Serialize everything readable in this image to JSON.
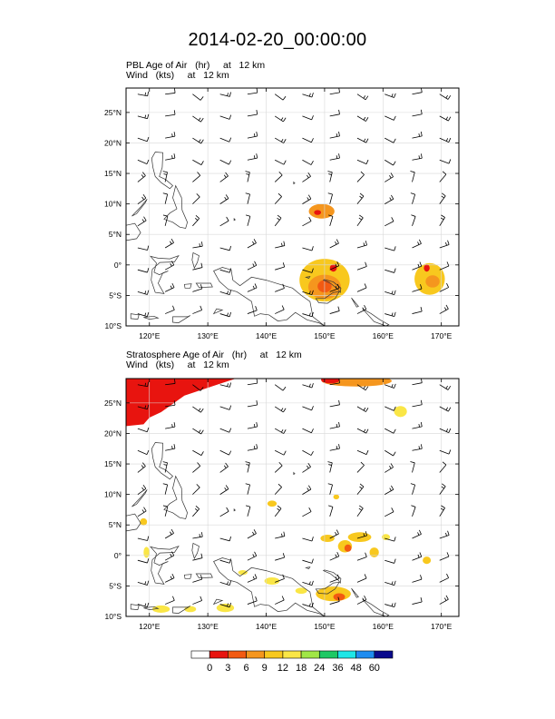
{
  "title": "2014-02-20_00:00:00",
  "colorbar": {
    "labels": [
      "0",
      "3",
      "6",
      "9",
      "12",
      "18",
      "24",
      "36",
      "48",
      "60"
    ],
    "colors": [
      "#ffffff",
      "#e8140f",
      "#f25a12",
      "#f5961e",
      "#f8c81e",
      "#fae646",
      "#a0e646",
      "#1ec864",
      "#1ee6e6",
      "#1e8cf0",
      "#0a0a8c"
    ]
  },
  "chart_data": [
    {
      "type": "heatmap",
      "name": "PBL",
      "title": "PBL Age of Air   (hr)     at   12 km",
      "subtitle": "Wind   (kts)     at   12 km",
      "xlim": [
        116,
        173
      ],
      "ylim": [
        -10,
        29
      ],
      "xticks": [
        120,
        130,
        140,
        150,
        160,
        170
      ],
      "xtick_labels": [
        "120°E",
        "130°E",
        "140°E",
        "150°E",
        "160°E",
        "170°E"
      ],
      "yticks": [
        -10,
        -5,
        0,
        5,
        10,
        15,
        20,
        25
      ],
      "ytick_labels": [
        "10°S",
        "5°S",
        "0°",
        "5°N",
        "10°N",
        "15°N",
        "20°N",
        "25°N"
      ],
      "grid": true,
      "patches": [
        {
          "lon": 149.5,
          "lat": 8.8,
          "rx": 2.2,
          "ry": 1.2,
          "level": 3
        },
        {
          "lon": 148.8,
          "lat": 8.6,
          "rx": 0.6,
          "ry": 0.4,
          "level": 1
        },
        {
          "lon": 150.0,
          "lat": -2.5,
          "rx": 4.3,
          "ry": 3.5,
          "level": 4
        },
        {
          "lon": 150.0,
          "lat": -3.6,
          "rx": 2.8,
          "ry": 2.0,
          "level": 3
        },
        {
          "lon": 151.5,
          "lat": -0.5,
          "rx": 0.6,
          "ry": 0.6,
          "level": 1
        },
        {
          "lon": 150.0,
          "lat": -3.5,
          "rx": 1.2,
          "ry": 1.0,
          "level": 2
        },
        {
          "lon": 168.0,
          "lat": -2.3,
          "rx": 2.6,
          "ry": 2.6,
          "level": 4
        },
        {
          "lon": 168.5,
          "lat": -2.7,
          "rx": 1.2,
          "ry": 1.0,
          "level": 3
        },
        {
          "lon": 167.5,
          "lat": -0.5,
          "rx": 0.5,
          "ry": 0.6,
          "level": 1
        }
      ],
      "wind_u": 14,
      "wind_v": -6
    },
    {
      "type": "heatmap",
      "name": "Stratosphere",
      "title": "Stratosphere Age of Air   (hr)     at   12 km",
      "subtitle": "Wind   (kts)     at   12 km",
      "xlim": [
        116,
        173
      ],
      "ylim": [
        -10,
        29
      ],
      "xticks": [
        120,
        130,
        140,
        150,
        160,
        170
      ],
      "xtick_labels": [
        "120°E",
        "130°E",
        "140°E",
        "150°E",
        "160°E",
        "170°E"
      ],
      "yticks": [
        -10,
        -5,
        0,
        5,
        10,
        15,
        20,
        25
      ],
      "ytick_labels": [
        "10°S",
        "5°S",
        "0°",
        "5°N",
        "10°N",
        "15°N",
        "20°N",
        "25°N"
      ],
      "grid": true,
      "patches": [
        {
          "lon": 155.5,
          "lat": 28.6,
          "rx": 6.0,
          "ry": 0.9,
          "level": 3
        },
        {
          "lon": 151.0,
          "lat": 28.8,
          "rx": 1.6,
          "ry": 0.6,
          "level": 1
        },
        {
          "lon": 163.0,
          "lat": 23.6,
          "rx": 1.1,
          "ry": 0.9,
          "level": 5
        },
        {
          "lon": 141.0,
          "lat": 8.5,
          "rx": 0.8,
          "ry": 0.5,
          "level": 4
        },
        {
          "lon": 152.0,
          "lat": 9.6,
          "rx": 0.5,
          "ry": 0.4,
          "level": 4
        },
        {
          "lon": 150.5,
          "lat": 2.8,
          "rx": 1.2,
          "ry": 0.6,
          "level": 4
        },
        {
          "lon": 156.0,
          "lat": 3.0,
          "rx": 2.0,
          "ry": 0.8,
          "level": 4
        },
        {
          "lon": 153.5,
          "lat": 1.5,
          "rx": 1.2,
          "ry": 1.0,
          "level": 4
        },
        {
          "lon": 154.0,
          "lat": 1.2,
          "rx": 0.6,
          "ry": 0.6,
          "level": 2
        },
        {
          "lon": 158.5,
          "lat": 0.5,
          "rx": 0.8,
          "ry": 0.8,
          "level": 4
        },
        {
          "lon": 160.5,
          "lat": 3.0,
          "rx": 0.7,
          "ry": 0.5,
          "level": 5
        },
        {
          "lon": 167.5,
          "lat": -0.8,
          "rx": 0.7,
          "ry": 0.6,
          "level": 4
        },
        {
          "lon": 136.0,
          "lat": -2.8,
          "rx": 0.8,
          "ry": 0.4,
          "level": 5
        },
        {
          "lon": 141.0,
          "lat": -4.2,
          "rx": 1.3,
          "ry": 0.6,
          "level": 5
        },
        {
          "lon": 146.0,
          "lat": -5.8,
          "rx": 1.0,
          "ry": 0.5,
          "level": 5
        },
        {
          "lon": 151.5,
          "lat": -6.3,
          "rx": 3.0,
          "ry": 1.2,
          "level": 4
        },
        {
          "lon": 152.5,
          "lat": -6.8,
          "rx": 1.0,
          "ry": 0.6,
          "level": 2
        },
        {
          "lon": 133.0,
          "lat": -8.6,
          "rx": 1.5,
          "ry": 0.7,
          "level": 5
        },
        {
          "lon": 119.0,
          "lat": 5.5,
          "rx": 0.6,
          "ry": 0.6,
          "level": 4
        },
        {
          "lon": 119.5,
          "lat": 0.5,
          "rx": 0.5,
          "ry": 0.9,
          "level": 5
        },
        {
          "lon": 122.0,
          "lat": -8.8,
          "rx": 1.5,
          "ry": 0.6,
          "level": 5
        },
        {
          "lon": 127.0,
          "lat": -8.8,
          "rx": 1.0,
          "ry": 0.5,
          "level": 5
        }
      ],
      "red_region": [
        [
          116,
          29
        ],
        [
          134.8,
          29
        ],
        [
          131,
          27.8
        ],
        [
          126,
          26.2
        ],
        [
          122,
          23.5
        ],
        [
          120,
          22.6
        ],
        [
          119,
          21.5
        ],
        [
          116,
          21.2
        ]
      ],
      "red_region_level": 1,
      "wind_u": 14,
      "wind_v": -6
    }
  ]
}
